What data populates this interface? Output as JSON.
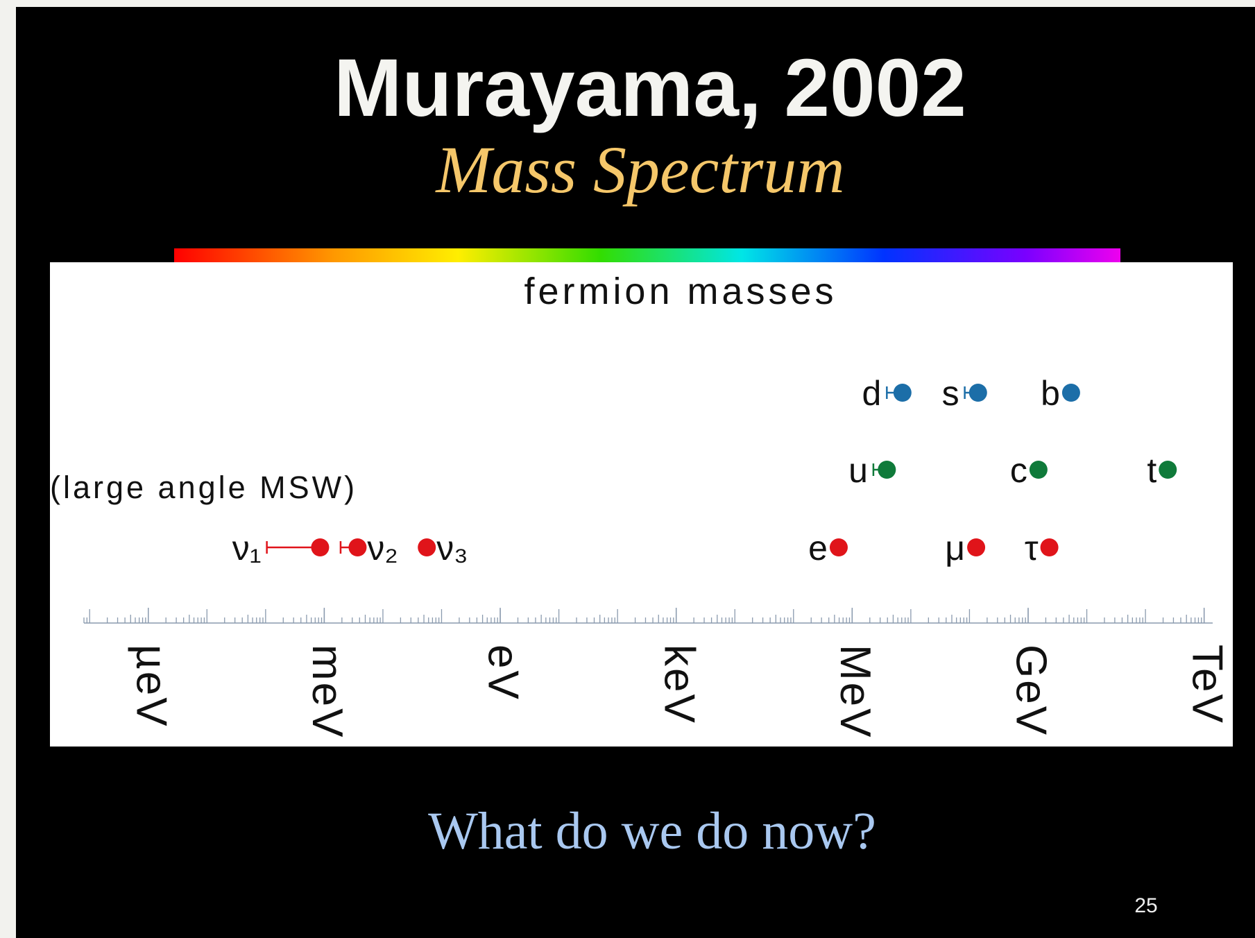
{
  "slide": {
    "title": "Murayama, 2002",
    "subtitle": "Mass Spectrum",
    "caption": "What do we do now?",
    "page_number": "25"
  },
  "chart_data": {
    "type": "scatter",
    "title": "fermion masses",
    "annotation": "(large angle MSW)",
    "xscale": "log",
    "xlim": [
      8e-08,
      1400000000000.0
    ],
    "xticks": [
      {
        "value": 1e-06,
        "label": "µeV"
      },
      {
        "value": 0.001,
        "label": "meV"
      },
      {
        "value": 1,
        "label": "eV"
      },
      {
        "value": 1000.0,
        "label": "keV"
      },
      {
        "value": 1000000.0,
        "label": "MeV"
      },
      {
        "value": 1000000000.0,
        "label": "GeV"
      },
      {
        "value": 1000000000000.0,
        "label": "TeV"
      }
    ],
    "series": [
      {
        "color": "#e0141a",
        "labels": [
          "ν₁",
          "ν₂",
          "ν₃",
          "e",
          "μ",
          "τ"
        ],
        "values": [
          0.00085,
          0.0037,
          0.056,
          590000,
          130000000,
          2300000000
        ],
        "xmin": [
          0.000105,
          0.0019,
          null,
          null,
          null,
          null
        ]
      },
      {
        "color": "#0f7a3a",
        "labels": [
          "u",
          "c",
          "t"
        ],
        "values": [
          3900000,
          1500000000,
          240000000000
        ],
        "xmin": [
          2300000,
          null,
          null
        ]
      },
      {
        "color": "#1c6ea8",
        "labels": [
          "d",
          "s",
          "b"
        ],
        "values": [
          7200000,
          140000000,
          5400000000
        ],
        "xmin": [
          3900000,
          83000000,
          null
        ]
      }
    ]
  }
}
